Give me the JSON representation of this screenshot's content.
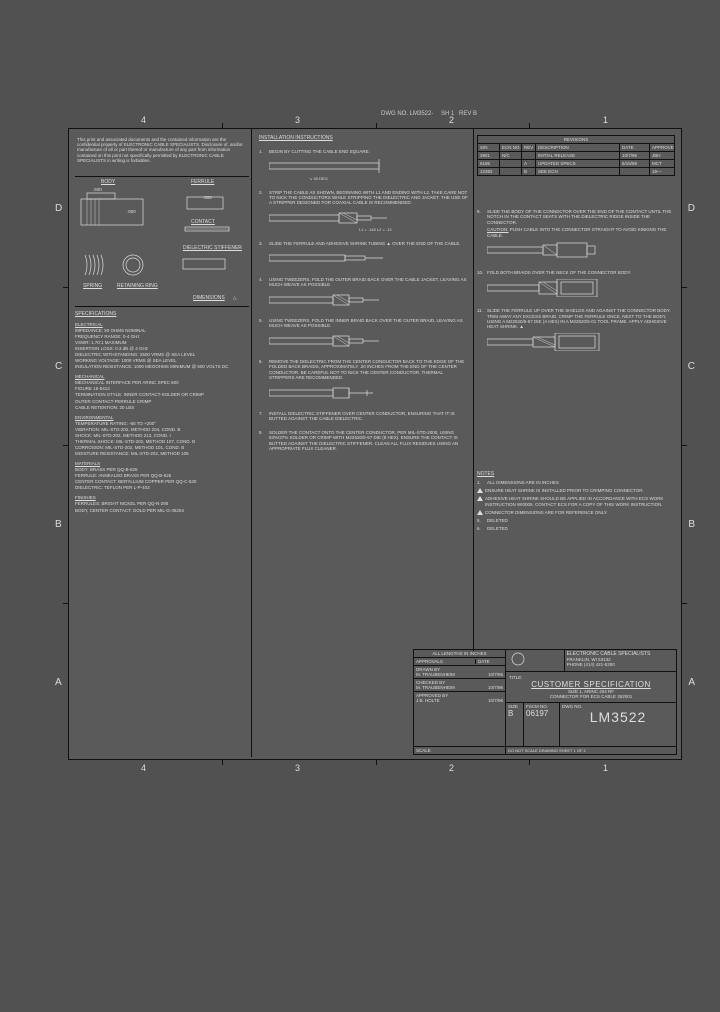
{
  "drawing_ref": {
    "label": "LM3522-",
    "sheet": "1",
    "rev": "B"
  },
  "columns": [
    "4",
    "3",
    "2",
    "1"
  ],
  "rows": [
    "D",
    "C",
    "B",
    "A"
  ],
  "confidential": "This print and associated documents and the contained information are the confidential property of ELECTRONIC CABLE SPECIALISTS. Disclosure of, and/or manufacture of all or part thereof or manufacture of any part from information contained on this print not specifically permitted by ELECTRONIC CABLE SPECIALISTS in writing is forbidden.",
  "diagram": {
    "body": "BODY",
    "ferrule": "FERRULE",
    "contact": "CONTACT",
    "spring": "SPRING",
    "retaining_ring": "RETAINING RING",
    "dielectric_stiffener": "DIELECTRIC STIFFENER",
    "dimensions": "DIMENSIONS",
    "d1": ".500",
    "d2": ".500",
    "d3": ".500"
  },
  "specs": {
    "title": "SPECIFICATIONS",
    "electrical": {
      "h": "ELECTRICAL",
      "lines": [
        "IMPEDANCE: 50 OHMS NOMINAL",
        "FREQUENCY RANGE: 0-4 GHz",
        "VSWR: 1.70:1 MAXIMUM",
        "INSERTION LOSS: 0.3 dB @ 4 GHz",
        "DIELECTRIC WITHSTANDING: 2500 VRMS @ SEA LEVEL",
        "WORKING VOLTAGE: 1000 VRMS @ SEA LEVEL",
        "INSULATION RESISTANCE: 1000 MEGOHMS MINIMUM @ 500 VOLTS DC"
      ]
    },
    "mechanical": {
      "h": "MECHANICAL",
      "lines": [
        "MECHANICAL INTERFACE PER ARINC SPEC 600",
        "FIGURE 15-5413",
        "TERMINATION STYLE: INNER CONTACT-SOLDER OR CRIMP",
        "OUTER CONTACT-FERRULE CRIMP",
        "CABLE RETENTION: 20 LBS"
      ]
    },
    "environmental": {
      "h": "ENVIRONMENTAL",
      "lines": [
        "TEMPERATURE RATING: -65 TO +200°",
        "VIBRATION: MIL-STD-202, METHOD 204, COND. B",
        "SHOCK: MIL-STD-202, METHOD 213, COND. I",
        "THERMAL SHOCK: MIL-STD-202, METHOD 107, COND. B",
        "CORROSION: MIL-STD-202, METHOD 101, COND. B",
        "MOISTURE RESISTANCE: MIL-STD-202, METHOD 106"
      ]
    },
    "materials": {
      "h": "MATERIALS",
      "lines": [
        "BODY: BRASS PER QQ-B-626",
        "FERRULE: ANNEALED BRASS PER QQ-B-626",
        "CENTER CONTACT: BERYLLIUM COPPER PER QQ-C-530",
        "DIELECTRIC: TEFLON PER L-P-403"
      ]
    },
    "finishes": {
      "h": "FINISHES",
      "lines": [
        "FERRULES: BRIGHT NICKEL PER QQ-N-290",
        "BODY, CENTER CONTACT: GOLD PER MIL-G-45204"
      ]
    }
  },
  "instructions": {
    "title": "INSTALLATION INSTRUCTIONS",
    "steps": [
      {
        "n": "1.",
        "t": "BEGIN BY CUTTING THE CABLE END SQUARE.",
        "sub": "90 DEG"
      },
      {
        "n": "2.",
        "t": "STRIP THE CABLE AS SHOWN, BEGINNING WITH L1 AND ENDING WITH L2. TAKE CARE NOT TO NICK THE CONDUCTORS WHILE STRIPPING THE DIELECTRIC AND JACKET. THE USE OF A STRIPPER DESIGNED FOR COAXIAL CABLE IS RECOMMENDED.",
        "dims": "L1 = .140  L2 = .13"
      },
      {
        "n": "3.",
        "t": "SLIDE THE FERRULE AND ADHESIVE SHRINK TUBING ▲ OVER THE END OF THE CABLE."
      },
      {
        "n": "4.",
        "t": "USING TWEEZERS, FOLD THE OUTER BRAID BACK OVER THE CABLE JACKET, LEAVING AS MUCH WEAVE AS POSSIBLE."
      },
      {
        "n": "5.",
        "t": "USING TWEEZERS, FOLD THE INNER BRAID BACK OVER THE OUTER BRAID, LEAVING AS MUCH WEAVE AS POSSIBLE."
      },
      {
        "n": "6.",
        "t": "REMOVE THE DIELECTRIC FROM THE CENTER CONDUCTOR BACK TO THE EDGE OF THE FOLDED BACK BRAIDS, APPROXIMATELY .20 INCHES FROM THE END OF THE CENTER CONDUCTOR. BE CAREFUL NOT TO NICK THE CENTER CONDUCTOR. THERMAL STRIPPERS ARE RECOMMENDED."
      },
      {
        "n": "7.",
        "t": "INSTALL DIELECTRIC STIFFENER OVER CENTER CONDUCTOR, ENSURING THAT IT IS BUTTED AGAINST THE CABLE DIELECTRIC."
      },
      {
        "n": "8.",
        "t": "SOLDER THE CONTACT ONTO THE CENTER CONDUCTOR, PER MIL-STD-2000, USING 63%/37% SOLDER OR CRIMP WITH M22520/5-57 DIE (8 HEX). ENSURE THE CONTACT IS BUTTED AGAINST THE DIELECTRIC STIFFENER. CLEAN ALL FLUX RESIDUES USING AN APPROPRIATE FLUX CLEANER."
      }
    ]
  },
  "rsteps": [
    {
      "n": "9.",
      "t": "SLIDE THE BODY OF THE CONNECTOR OVER THE END OF THE CONTACT UNTIL THE NOTCH IN THE CONTACT SEATS WITH THE DIELECTRIC RIDGE INSIDE THE CONNECTOR.",
      "c": "CAUTION: PUSH CABLE INTO THE CONNECTOR STRAIGHT TO AVOID KINKING THE CABLE."
    },
    {
      "n": "10.",
      "t": "FOLD BOTH BRAIDS OVER THE NECK OF THE CONNECTOR BODY."
    },
    {
      "n": "11.",
      "t": "SLIDE THE FERRULE UP OVER THE SHIELDS AND AGAINST THE CONNECTOR BODY. TRIM AWAY ANY EXCESS BRAID. CRIMP THE FERRULE ONCE, NEXT TO THE BODY, USING A M22520/5-57 DIE (A HEX) IN A M22520/5-01 TOOL FRAME. APPLY ADHESIVE HEAT SHRINK. ▲"
    }
  ],
  "notes": {
    "title": "NOTES",
    "items": [
      {
        "p": "1.",
        "t": "ALL DIMENSIONS ARE IN INCHES"
      },
      {
        "p": "△",
        "t": "ENSURE HEAT SHRINK IS INSTALLED PRIOR TO CRIMPING CONNECTOR."
      },
      {
        "p": "△",
        "t": "ADHESIVE HEAT SHRINK SHOULD BE APPLIED IN ACCORDANCE WITH ECS WORK INSTRUCTION WI0005. CONTACT ECS FOR A COPY OF THIS WORK INSTRUCTION."
      },
      {
        "p": "△",
        "t": "CONNECTOR DIMENSIONS ARE FOR REFERENCE ONLY."
      },
      {
        "p": "5.",
        "t": "DELETED"
      },
      {
        "p": "6.",
        "t": "DELETED"
      }
    ]
  },
  "revisions": {
    "title": "REVISIONS",
    "head": [
      "S/N",
      "ECN NO.",
      "REV",
      "DESCRIPTION",
      "DATE",
      "APPROVED"
    ],
    "rows": [
      [
        "3901",
        "N/C",
        "",
        "INITIAL RELEASE",
        "10/7/96",
        "JBH"
      ],
      [
        "6186",
        "",
        "A",
        "UPDATED SPECS",
        "6/15/98",
        "MCT"
      ],
      [
        "12382",
        "",
        "B",
        "SEE ECN",
        "",
        "19—"
      ]
    ]
  },
  "titleblock": {
    "all_lengths": "ALL LENGTHS IN INCHES",
    "approvals": "APPROVALS",
    "date": "DATE",
    "drawn_by": "DRAWN BY",
    "drawn_name": "M. TRAUBENHEIM",
    "drawn_date": "10/7/96",
    "checked_by": "CHECKED BY",
    "checked_name": "M. TRAUBENHEIM",
    "checked_date": "10/7/96",
    "approved_by": "APPROVED BY",
    "approved_name": "J.B. HOLTE",
    "approved_date": "10/7/96",
    "company": "ELECTRONIC CABLE SPECIALISTS",
    "company_addr": "FRANKLIN, WI 53132",
    "company_ph": "PHONE (414) 421-5300",
    "title_lbl": "TITLE:",
    "cust_spec": "CUSTOMER SPECIFICATION",
    "subtitle1": "SIZE 1, ARINC 404 RF",
    "subtitle2": "CONNECTOR FOR ECS CABLE 352001",
    "fscm": "FSCM NO.",
    "fscm_v": "06197",
    "dwg_lbl": "DWG NO.",
    "dwg_no": "LM3522",
    "size": "SIZE",
    "size_v": "B",
    "scale": "SCALE",
    "sheet": "DO NOT SCALE DRAWING  SHEET 1 OF 2"
  }
}
